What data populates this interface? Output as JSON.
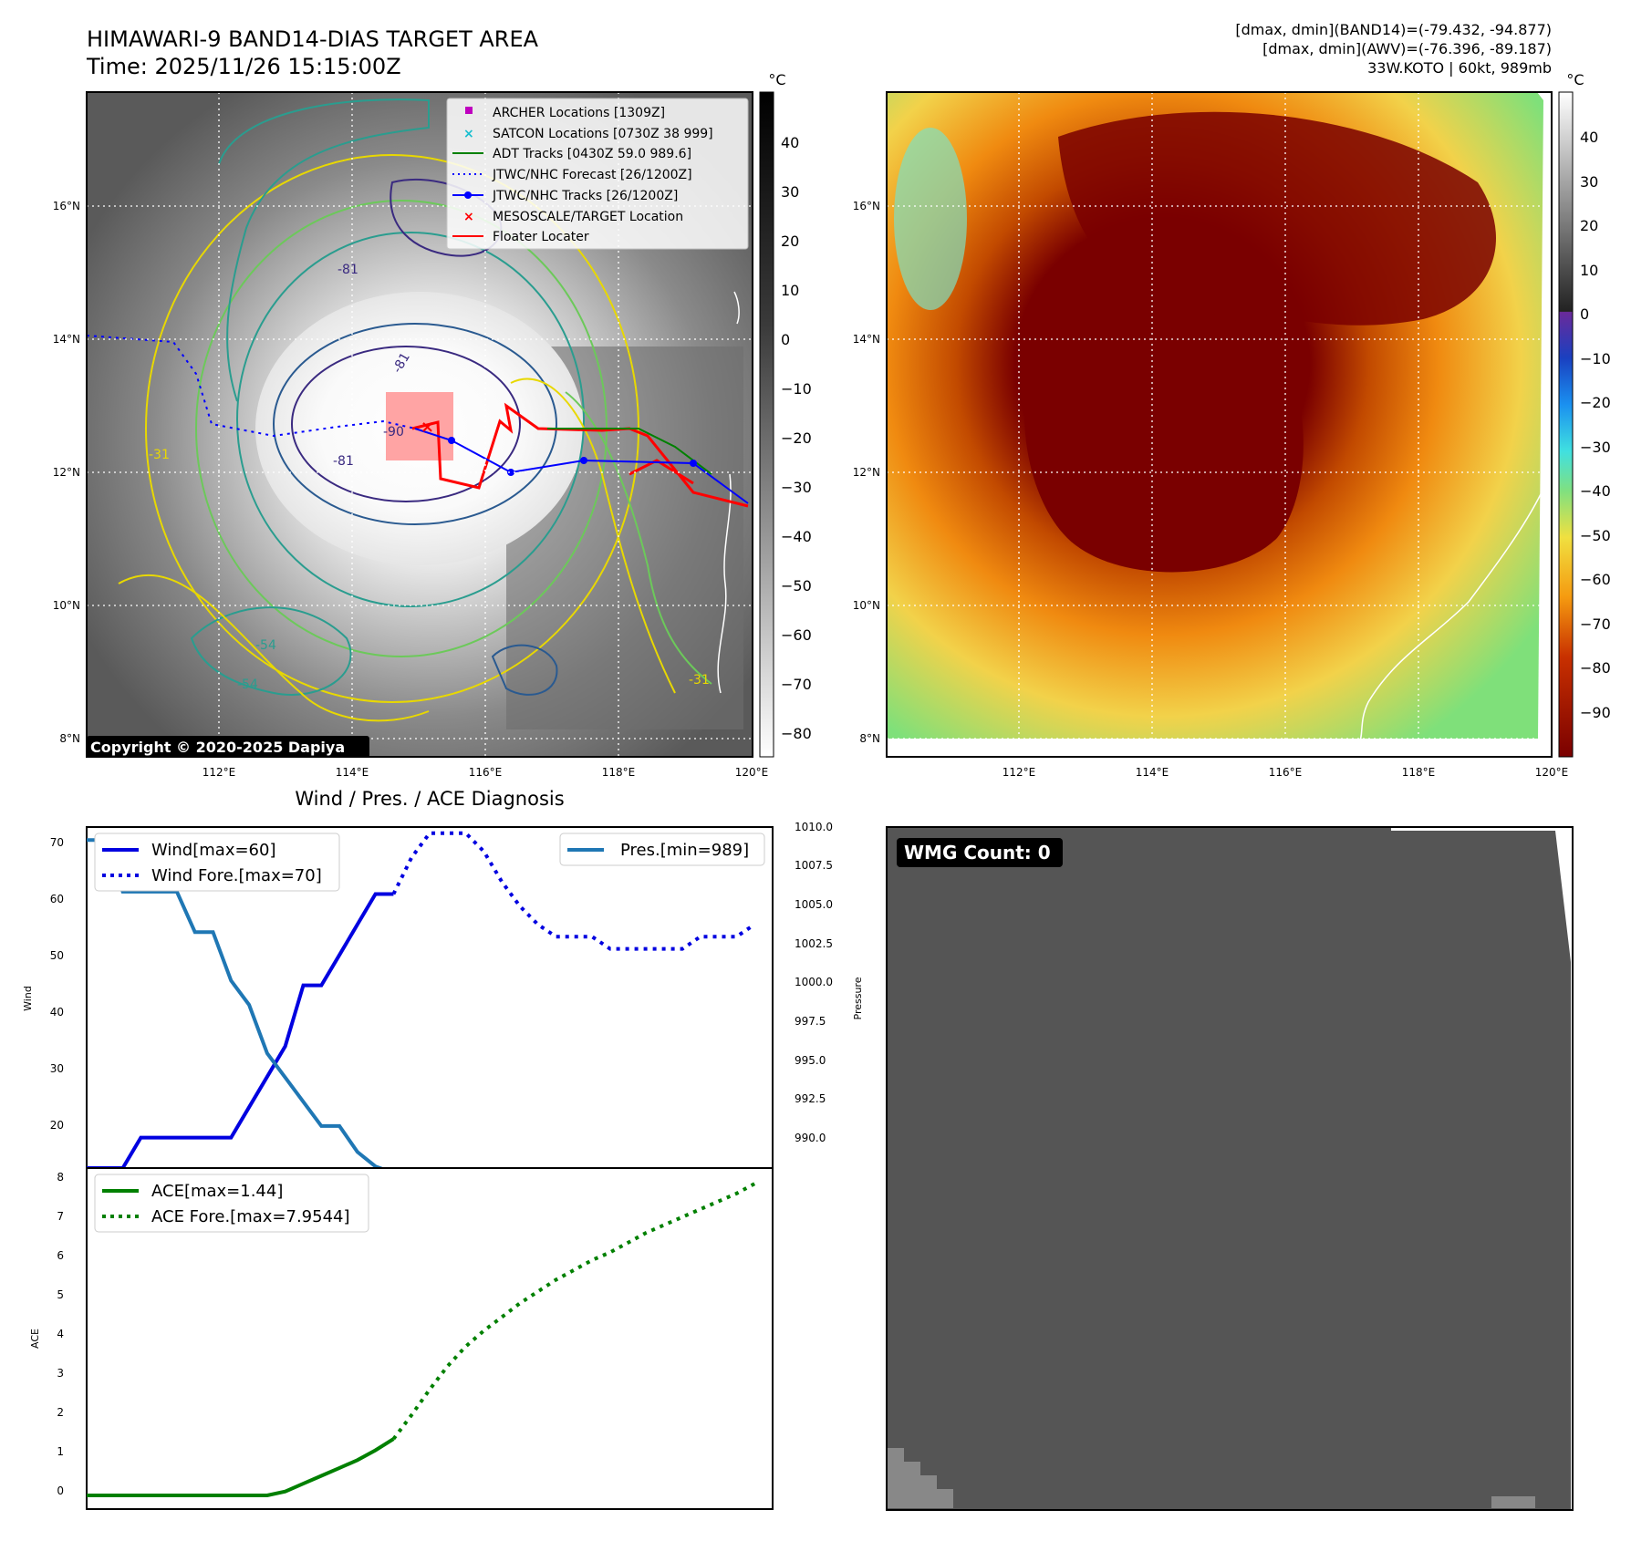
{
  "header": {
    "title": "HIMAWARI-9 BAND14-DIAS TARGET AREA",
    "time": "Time: 2025/11/26 15:15:00Z",
    "stats_band14": "[dmax, dmin](BAND14)=(-79.432, -94.877)",
    "stats_awv": "[dmax, dmin](AWV)=(-76.396, -89.187)",
    "storm": "33W.KOTO | 60kt, 989mb"
  },
  "map": {
    "lat_ticks": [
      "16°N",
      "14°N",
      "12°N",
      "10°N",
      "8°N"
    ],
    "lon_ticks": [
      "112°E",
      "114°E",
      "116°E",
      "118°E",
      "120°E"
    ],
    "copyright": "Copyright © 2020-2025 Dapiya",
    "contour_labels": [
      "-81",
      "-81",
      "-90",
      "-81",
      "-54",
      "-54",
      "-31",
      "-31"
    ],
    "legend": [
      {
        "label": "ARCHER Locations [1309Z]",
        "color": "#bf00bf",
        "marker": "square"
      },
      {
        "label": "SATCON Locations [0730Z 38 999]",
        "color": "#17becf",
        "marker": "x"
      },
      {
        "label": "ADT Tracks [0430Z 59.0 989.6]",
        "color": "#008000",
        "marker": "line"
      },
      {
        "label": "JTWC/NHC Forecast [26/1200Z]",
        "color": "#0000ff",
        "marker": "dotted"
      },
      {
        "label": "JTWC/NHC Tracks [26/1200Z]",
        "color": "#0000ff",
        "marker": "line-dot"
      },
      {
        "label": "MESOSCALE/TARGET Location",
        "color": "#ff0000",
        "marker": "x"
      },
      {
        "label": "Floater Locater",
        "color": "#ff0000",
        "marker": "line"
      }
    ]
  },
  "colorbar_left": {
    "unit": "°C",
    "ticks": [
      "40",
      "30",
      "20",
      "10",
      "0",
      "−10",
      "−20",
      "−30",
      "−40",
      "−50",
      "−60",
      "−70",
      "−80"
    ]
  },
  "colorbar_right": {
    "unit": "°C",
    "ticks": [
      "40",
      "30",
      "20",
      "10",
      "0",
      "−10",
      "−20",
      "−30",
      "−40",
      "−50",
      "−60",
      "−70",
      "−80",
      "−90"
    ]
  },
  "diagnosis": {
    "title": "Wind / Pres. / ACE Diagnosis",
    "wind_ylabel": "Wind",
    "pressure_ylabel": "Pressure",
    "ace_ylabel": "ACE",
    "wind_ticks": [
      "70",
      "60",
      "50",
      "40",
      "30",
      "20"
    ],
    "pressure_ticks": [
      "1010.0",
      "1007.5",
      "1005.0",
      "1002.5",
      "1000.0",
      "997.5",
      "995.0",
      "992.5",
      "990.0"
    ],
    "ace_ticks": [
      "8",
      "7",
      "6",
      "5",
      "4",
      "3",
      "2",
      "1",
      "0"
    ],
    "legend_wind": "Wind[max=60]",
    "legend_wind_fore": "Wind Fore.[max=70]",
    "legend_pres": "Pres.[min=989]",
    "legend_ace": "ACE[max=1.44]",
    "legend_ace_fore": "ACE Fore.[max=7.9544]"
  },
  "wmg": {
    "label": "WMG Count: 0"
  },
  "chart_data": [
    {
      "type": "line",
      "title": "Wind / Pres. / ACE Diagnosis",
      "ylabel": "Wind",
      "ylim": [
        15,
        71
      ],
      "xlim": [
        0,
        38
      ],
      "series": [
        {
          "name": "Wind[max=60]",
          "color": "#0000e0",
          "style": "solid",
          "x": [
            0,
            2,
            3,
            6,
            7,
            8,
            9,
            10,
            11,
            12,
            13,
            14,
            15,
            16,
            17
          ],
          "values": [
            15,
            15,
            20,
            20,
            20,
            20,
            25,
            30,
            35,
            45,
            45,
            50,
            55,
            60,
            60
          ]
        },
        {
          "name": "Wind Fore.[max=70]",
          "color": "#0000e0",
          "style": "dotted",
          "x": [
            17,
            18,
            19,
            20,
            21,
            22,
            23,
            24,
            25,
            26,
            27,
            28,
            29,
            30,
            31,
            32,
            33,
            34,
            35,
            36,
            37
          ],
          "values": [
            60,
            66,
            70,
            70,
            70,
            67,
            62,
            58,
            55,
            53,
            53,
            53,
            51,
            51,
            51,
            51,
            51,
            53,
            53,
            53,
            55
          ]
        }
      ]
    },
    {
      "type": "line",
      "ylabel": "Pressure",
      "ylim": [
        988.9,
        1010.0
      ],
      "xlim": [
        0,
        38
      ],
      "series": [
        {
          "name": "Pres.[min=989]",
          "color": "#1f77b4",
          "style": "solid",
          "x": [
            0,
            1,
            2,
            3,
            4,
            5,
            6,
            7,
            8,
            9,
            10,
            11,
            12,
            13,
            14,
            15,
            16,
            17
          ],
          "values": [
            1009.2,
            1009.2,
            1006.0,
            1006.0,
            1006.0,
            1006.0,
            1003.5,
            1003.5,
            1000.5,
            999.0,
            996.0,
            994.5,
            993.0,
            991.5,
            991.5,
            989.9,
            989.0,
            988.6
          ]
        }
      ]
    },
    {
      "type": "line",
      "ylabel": "ACE",
      "ylim": [
        -0.35,
        8.35
      ],
      "xlim": [
        0,
        38
      ],
      "series": [
        {
          "name": "ACE[max=1.44]",
          "color": "#008000",
          "style": "solid",
          "x": [
            0,
            3,
            6,
            9,
            10,
            11,
            12,
            13,
            14,
            15,
            16,
            17
          ],
          "values": [
            0,
            0,
            0,
            0,
            0,
            0.1,
            0.3,
            0.5,
            0.7,
            0.9,
            1.15,
            1.44
          ]
        },
        {
          "name": "ACE Fore.[max=7.9544]",
          "color": "#008000",
          "style": "dotted",
          "x": [
            17,
            18,
            19,
            20,
            21,
            22,
            23,
            24,
            25,
            26,
            27,
            28,
            29,
            30,
            31,
            32,
            33,
            34,
            35,
            36,
            37
          ],
          "values": [
            1.44,
            2.05,
            2.7,
            3.3,
            3.8,
            4.2,
            4.55,
            4.9,
            5.2,
            5.5,
            5.75,
            6.0,
            6.2,
            6.45,
            6.7,
            6.9,
            7.1,
            7.3,
            7.5,
            7.7,
            7.95
          ]
        }
      ]
    }
  ]
}
